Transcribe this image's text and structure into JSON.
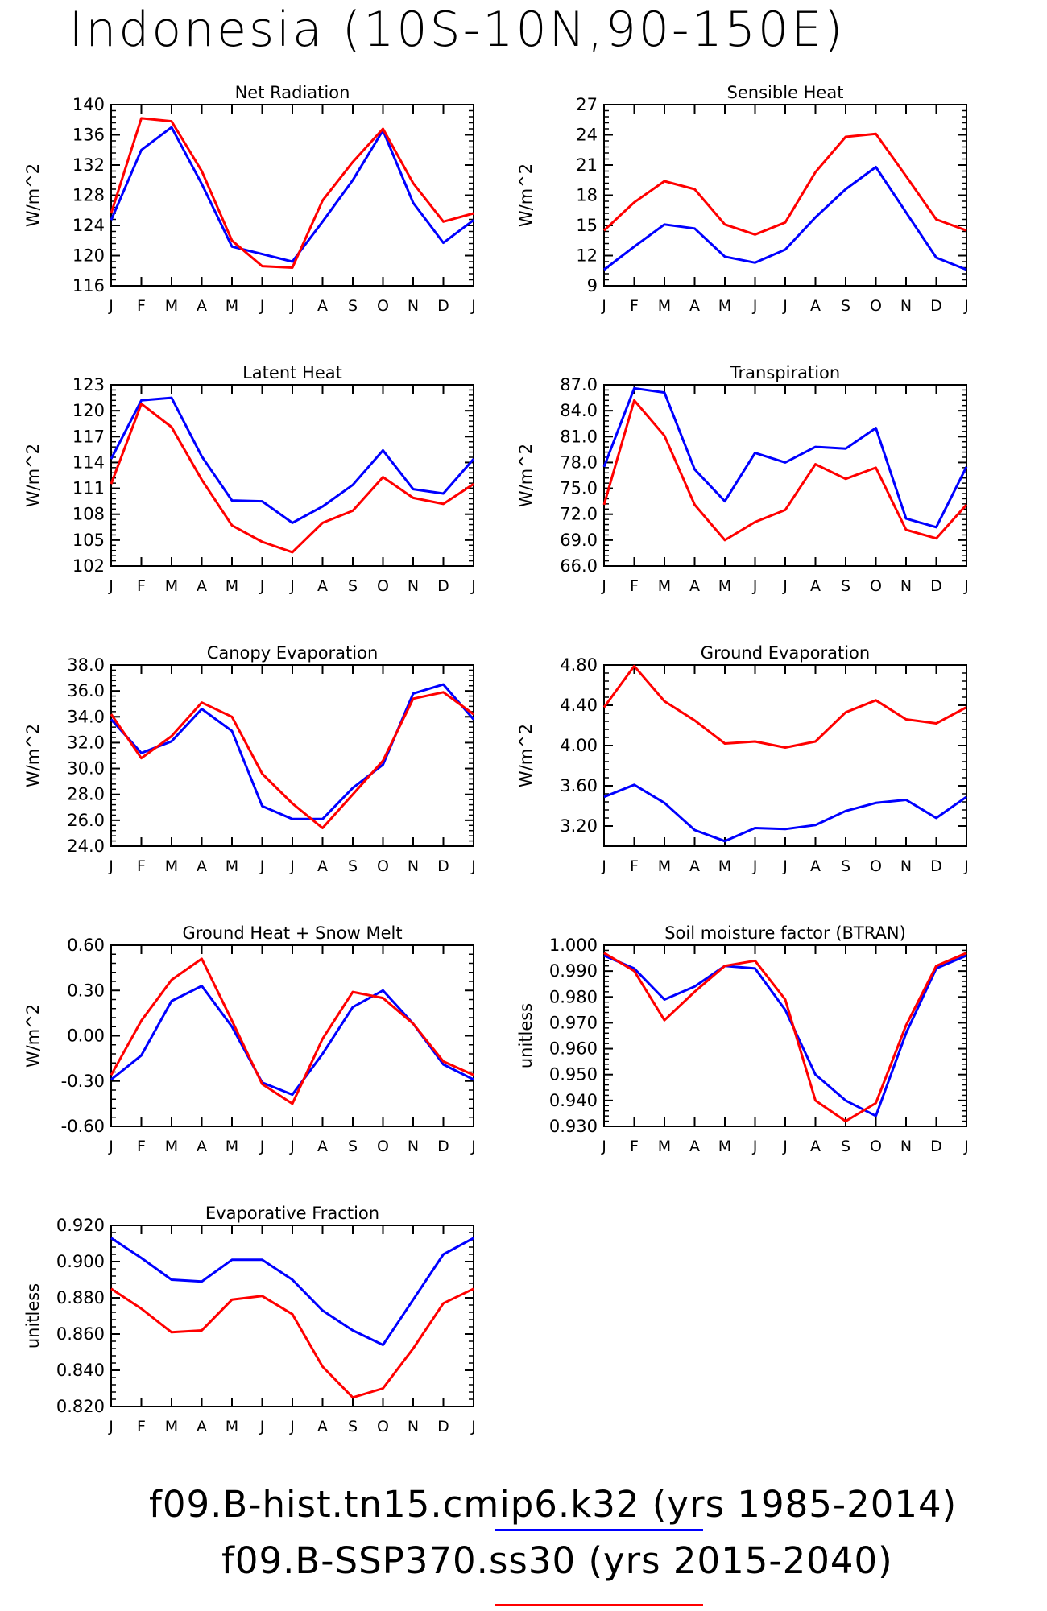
{
  "title": "Indonesia (10S-10N,90-150E)",
  "months": [
    "J",
    "F",
    "M",
    "A",
    "M",
    "J",
    "J",
    "A",
    "S",
    "O",
    "N",
    "D",
    "J"
  ],
  "series_colors": {
    "hist": "#0000ff",
    "ssp": "#ff0000"
  },
  "legend": [
    {
      "name": "f09.B-hist.tn15.cmip6.k32",
      "years": "(yrs 1985-2014)",
      "color": "#0000ff"
    },
    {
      "name": "f09.B-SSP370.ss30",
      "years": "(yrs 2015-2040)",
      "color": "#ff0000"
    }
  ],
  "chart_data": [
    {
      "type": "line",
      "title": "Net Radiation",
      "ylabel": "W/m^2",
      "ylim": [
        116,
        140
      ],
      "yticks": [
        "116",
        "120",
        "124",
        "128",
        "132",
        "136",
        "140"
      ],
      "categories": [
        "J",
        "F",
        "M",
        "A",
        "M",
        "J",
        "J",
        "A",
        "S",
        "O",
        "N",
        "D",
        "J"
      ],
      "series": [
        {
          "values": [
            124.7,
            134.0,
            137.0,
            129.5,
            121.2,
            120.2,
            119.2,
            124.5,
            130.0,
            136.6,
            127.0,
            121.7,
            124.7
          ]
        },
        {
          "values": [
            125.6,
            138.2,
            137.8,
            131.2,
            122.0,
            118.6,
            118.4,
            127.3,
            132.4,
            136.8,
            129.6,
            124.5,
            125.6
          ]
        }
      ]
    },
    {
      "type": "line",
      "title": "Sensible Heat",
      "ylabel": "W/m^2",
      "ylim": [
        9,
        27
      ],
      "yticks": [
        "9",
        "12",
        "15",
        "18",
        "21",
        "24",
        "27"
      ],
      "categories": [
        "J",
        "F",
        "M",
        "A",
        "M",
        "J",
        "J",
        "A",
        "S",
        "O",
        "N",
        "D",
        "J"
      ],
      "series": [
        {
          "values": [
            10.6,
            12.9,
            15.1,
            14.7,
            11.9,
            11.3,
            12.6,
            15.8,
            18.6,
            20.8,
            16.3,
            11.8,
            10.6
          ]
        },
        {
          "values": [
            14.5,
            17.3,
            19.4,
            18.6,
            15.1,
            14.1,
            15.3,
            20.3,
            23.8,
            24.1,
            19.9,
            15.6,
            14.5
          ]
        }
      ]
    },
    {
      "type": "line",
      "title": "Latent Heat",
      "ylabel": "W/m^2",
      "ylim": [
        102,
        123
      ],
      "yticks": [
        "102",
        "105",
        "108",
        "111",
        "114",
        "117",
        "120",
        "123"
      ],
      "categories": [
        "J",
        "F",
        "M",
        "A",
        "M",
        "J",
        "J",
        "A",
        "S",
        "O",
        "N",
        "D",
        "J"
      ],
      "series": [
        {
          "values": [
            114.4,
            121.2,
            121.5,
            114.7,
            109.6,
            109.5,
            107.0,
            108.9,
            111.4,
            115.4,
            110.9,
            110.4,
            114.4
          ]
        },
        {
          "values": [
            111.5,
            120.8,
            118.1,
            112.0,
            106.7,
            104.8,
            103.6,
            107.0,
            108.4,
            112.3,
            109.9,
            109.2,
            111.5
          ]
        }
      ]
    },
    {
      "type": "line",
      "title": "Transpiration",
      "ylabel": "W/m^2",
      "ylim": [
        66,
        87
      ],
      "yticks": [
        "66.0",
        "69.0",
        "72.0",
        "75.0",
        "78.0",
        "81.0",
        "84.0",
        "87.0"
      ],
      "categories": [
        "J",
        "F",
        "M",
        "A",
        "M",
        "J",
        "J",
        "A",
        "S",
        "O",
        "N",
        "D",
        "J"
      ],
      "series": [
        {
          "values": [
            77.5,
            86.6,
            86.1,
            77.2,
            73.5,
            79.1,
            78.0,
            79.8,
            79.6,
            82.0,
            71.5,
            70.5,
            77.5
          ]
        },
        {
          "values": [
            73.1,
            85.2,
            81.1,
            73.1,
            69.0,
            71.1,
            72.5,
            77.8,
            76.1,
            77.4,
            70.2,
            69.2,
            73.1
          ]
        }
      ]
    },
    {
      "type": "line",
      "title": "Canopy Evaporation",
      "ylabel": "W/m^2",
      "ylim": [
        24,
        38
      ],
      "yticks": [
        "24.0",
        "26.0",
        "28.0",
        "30.0",
        "32.0",
        "34.0",
        "36.0",
        "38.0"
      ],
      "categories": [
        "J",
        "F",
        "M",
        "A",
        "M",
        "J",
        "J",
        "A",
        "S",
        "O",
        "N",
        "D",
        "J"
      ],
      "series": [
        {
          "values": [
            33.8,
            31.2,
            32.1,
            34.6,
            32.9,
            27.1,
            26.1,
            26.1,
            28.5,
            30.3,
            35.8,
            36.5,
            33.8
          ]
        },
        {
          "values": [
            34.2,
            30.8,
            32.5,
            35.1,
            34.0,
            29.6,
            27.3,
            25.4,
            28.0,
            30.6,
            35.4,
            35.9,
            34.2
          ]
        }
      ]
    },
    {
      "type": "line",
      "title": "Ground Evaporation",
      "ylabel": "W/m^2",
      "ylim": [
        3.0,
        4.8
      ],
      "yticks": [
        "3.20",
        "3.60",
        "4.00",
        "4.40",
        "4.80"
      ],
      "categories": [
        "J",
        "F",
        "M",
        "A",
        "M",
        "J",
        "J",
        "A",
        "S",
        "O",
        "N",
        "D",
        "J"
      ],
      "series": [
        {
          "values": [
            3.49,
            3.61,
            3.43,
            3.16,
            3.05,
            3.18,
            3.17,
            3.21,
            3.35,
            3.43,
            3.46,
            3.28,
            3.49
          ]
        },
        {
          "values": [
            4.38,
            4.79,
            4.44,
            4.25,
            4.02,
            4.04,
            3.98,
            4.04,
            4.33,
            4.45,
            4.26,
            4.22,
            4.38
          ]
        }
      ]
    },
    {
      "type": "line",
      "title": "Ground Heat + Snow Melt",
      "ylabel": "W/m^2",
      "ylim": [
        -0.6,
        0.6
      ],
      "yticks": [
        "-0.60",
        "-0.30",
        "0.00",
        "0.30",
        "0.60"
      ],
      "categories": [
        "J",
        "F",
        "M",
        "A",
        "M",
        "J",
        "J",
        "A",
        "S",
        "O",
        "N",
        "D",
        "J"
      ],
      "series": [
        {
          "values": [
            -0.29,
            -0.13,
            0.23,
            0.33,
            0.06,
            -0.31,
            -0.39,
            -0.12,
            0.19,
            0.3,
            0.08,
            -0.19,
            -0.29
          ]
        },
        {
          "values": [
            -0.26,
            0.1,
            0.37,
            0.51,
            0.1,
            -0.32,
            -0.45,
            -0.02,
            0.29,
            0.25,
            0.08,
            -0.17,
            -0.26
          ]
        }
      ]
    },
    {
      "type": "line",
      "title": "Soil moisture factor (BTRAN)",
      "ylabel": "unitless",
      "ylim": [
        0.93,
        1.0
      ],
      "yticks": [
        "0.930",
        "0.940",
        "0.950",
        "0.960",
        "0.970",
        "0.980",
        "0.990",
        "1.000"
      ],
      "categories": [
        "J",
        "F",
        "M",
        "A",
        "M",
        "J",
        "J",
        "A",
        "S",
        "O",
        "N",
        "D",
        "J"
      ],
      "series": [
        {
          "values": [
            0.996,
            0.991,
            0.979,
            0.984,
            0.992,
            0.991,
            0.975,
            0.95,
            0.94,
            0.934,
            0.966,
            0.991,
            0.996
          ]
        },
        {
          "values": [
            0.997,
            0.99,
            0.971,
            0.982,
            0.992,
            0.994,
            0.979,
            0.94,
            0.932,
            0.939,
            0.969,
            0.992,
            0.997
          ]
        }
      ]
    },
    {
      "type": "line",
      "title": "Evaporative Fraction",
      "ylabel": "unitless",
      "ylim": [
        0.82,
        0.92
      ],
      "yticks": [
        "0.820",
        "0.840",
        "0.860",
        "0.880",
        "0.900",
        "0.920"
      ],
      "categories": [
        "J",
        "F",
        "M",
        "A",
        "M",
        "J",
        "J",
        "A",
        "S",
        "O",
        "N",
        "D",
        "J"
      ],
      "series": [
        {
          "values": [
            0.913,
            0.902,
            0.89,
            0.889,
            0.901,
            0.901,
            0.89,
            0.873,
            0.862,
            0.854,
            0.879,
            0.904,
            0.913
          ]
        },
        {
          "values": [
            0.885,
            0.874,
            0.861,
            0.862,
            0.879,
            0.881,
            0.871,
            0.842,
            0.825,
            0.83,
            0.852,
            0.877,
            0.885
          ]
        }
      ]
    }
  ]
}
